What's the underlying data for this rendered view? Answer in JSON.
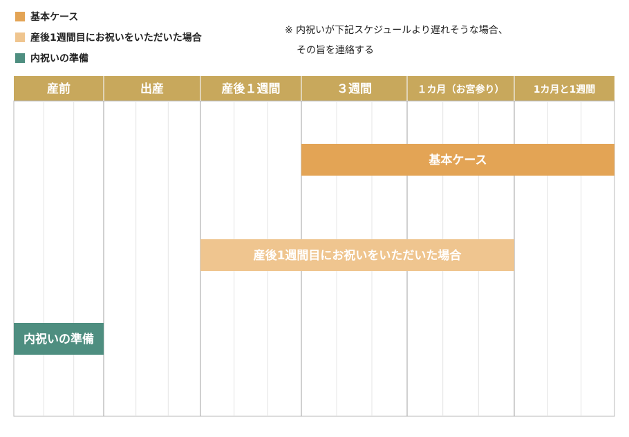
{
  "legend": {
    "items": [
      {
        "label": "基本ケース",
        "color": "#E3A455"
      },
      {
        "label": "産後1週間目にお祝いをいただいた場合",
        "color": "#EFC58F"
      },
      {
        "label": "内祝いの準備",
        "color": "#4E8E80"
      }
    ]
  },
  "note": {
    "line1": "※ 内祝いが下記スケジュールより遅れそうな場合、",
    "line2": "その旨を連絡する"
  },
  "chart_data": {
    "type": "timeline",
    "header_color": "#C8A85C",
    "categories": [
      "産前",
      "出産",
      "産後１週間",
      "３週間",
      "１カ月（お宮参り）",
      "1カ月と1週間"
    ],
    "bars": [
      {
        "label": "基本ケース",
        "start": "３週間",
        "end": "1カ月と1週間",
        "color": "#E3A455"
      },
      {
        "label": "産後1週間目にお祝いをいただいた場合",
        "start": "産後１週間",
        "end": "１カ月（お宮参り）",
        "color": "#EFC58F"
      },
      {
        "label": "内祝いの準備",
        "start": "産前",
        "end": "産前",
        "color": "#4E8E80"
      }
    ]
  }
}
